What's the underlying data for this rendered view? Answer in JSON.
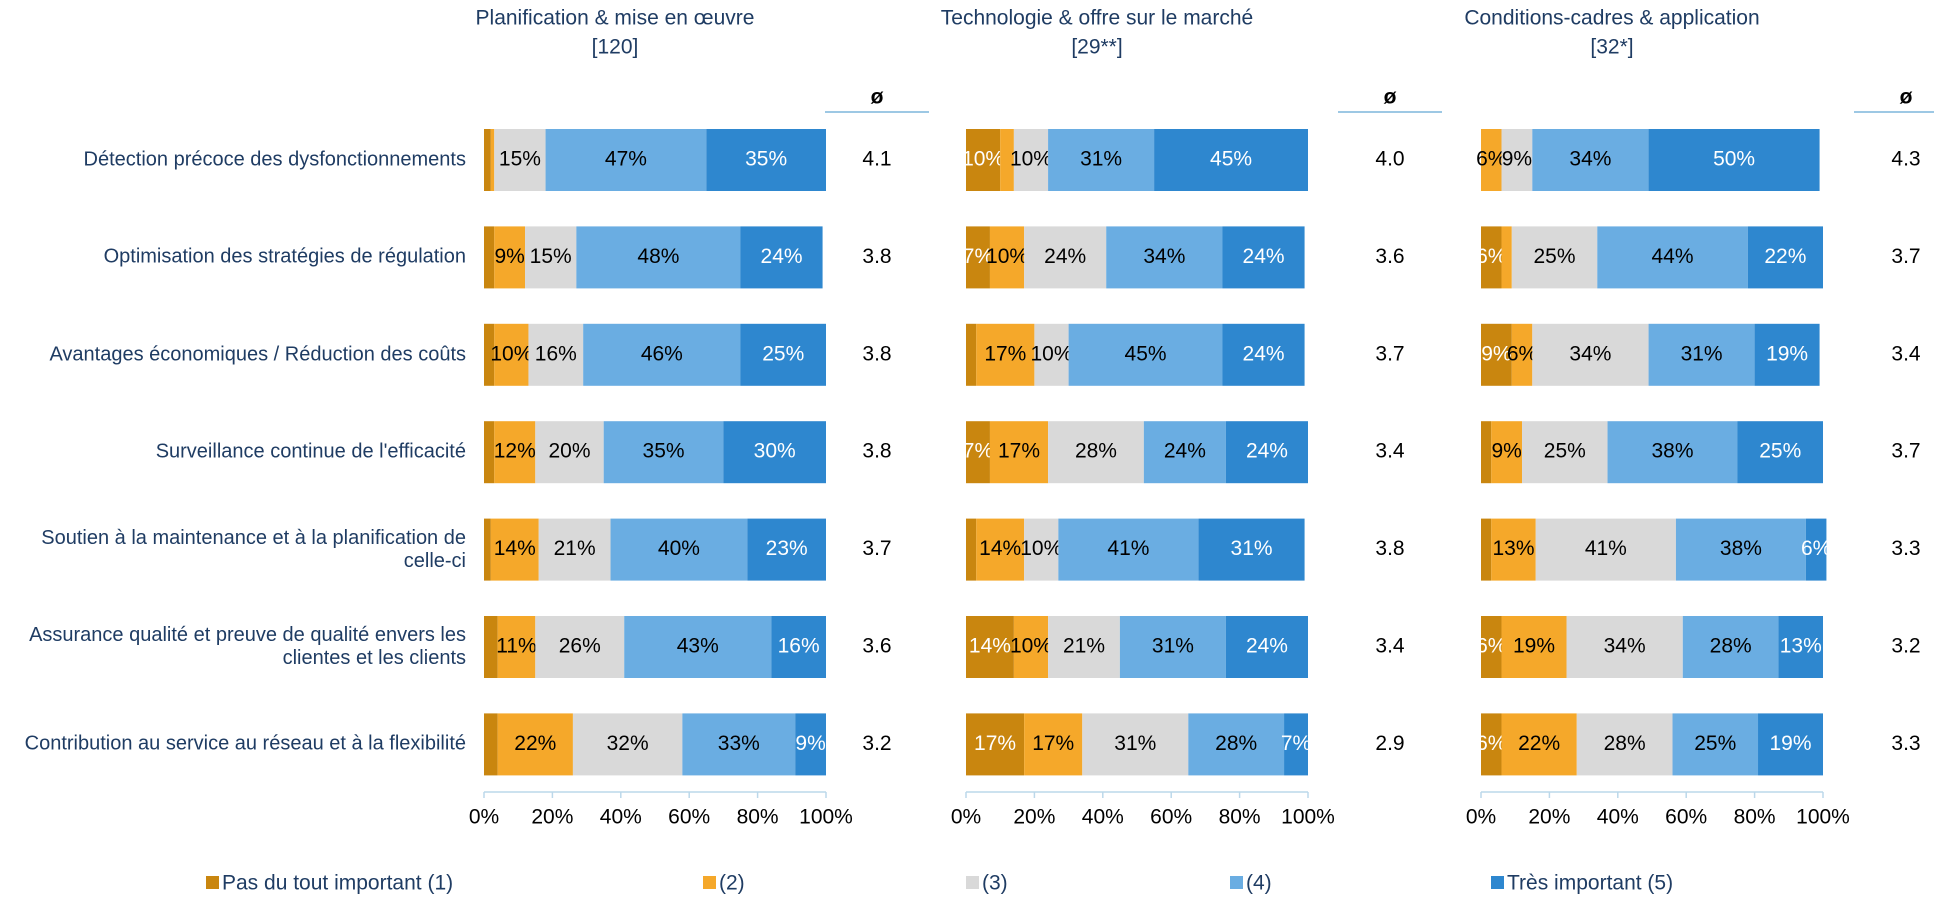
{
  "chart_data": [
    {
      "type": "stacked-bar-horizontal",
      "title": "Planification & mise en œuvre",
      "subtitle": "[120]",
      "categories": [
        "Détection précoce des dysfonctionnements",
        "Optimisation des stratégies de régulation",
        "Avantages économiques / Réduction des coûts",
        "Surveillance continue de l'efficacité",
        "Soutien à la maintenance et à la planification de celle-ci",
        "Assurance qualité et preuve de qualité envers les clientes et les clients",
        "Contribution au service au réseau et à la flexibilité"
      ],
      "xlim": [
        0,
        100
      ],
      "xticks": [
        {
          "value": 0,
          "label": "0%"
        },
        {
          "value": 20,
          "label": "20%"
        },
        {
          "value": 40,
          "label": "40%"
        },
        {
          "value": 60,
          "label": "60%"
        },
        {
          "value": 80,
          "label": "80%"
        },
        {
          "value": 100,
          "label": "100%"
        }
      ],
      "average_title": "ø",
      "averages": [
        "4.1",
        "3.8",
        "3.8",
        "3.8",
        "3.7",
        "3.6",
        "3.2"
      ],
      "series": [
        {
          "name": "Pas du tout important (1)",
          "color": "#c9860f",
          "values": [
            2,
            3,
            3,
            3,
            2,
            4,
            4
          ],
          "value_labels": [
            null,
            null,
            null,
            null,
            null,
            null,
            null
          ]
        },
        {
          "name": "(2)",
          "color": "#f5a82a",
          "values": [
            1,
            9,
            10,
            12,
            14,
            11,
            22
          ],
          "value_labels": [
            null,
            "9%",
            "10%",
            "12%",
            "14%",
            "11%",
            "22%"
          ]
        },
        {
          "name": "(3)",
          "color": "#d9d9d9",
          "values": [
            15,
            15,
            16,
            20,
            21,
            26,
            32
          ],
          "value_labels": [
            "15%",
            "15%",
            "16%",
            "20%",
            "21%",
            "26%",
            "32%"
          ]
        },
        {
          "name": "(4)",
          "color": "#6aade2",
          "values": [
            47,
            48,
            46,
            35,
            40,
            43,
            33
          ],
          "value_labels": [
            "47%",
            "48%",
            "46%",
            "35%",
            "40%",
            "43%",
            "33%"
          ]
        },
        {
          "name": "Très important (5)",
          "color": "#2e87cf",
          "values": [
            35,
            24,
            25,
            30,
            23,
            16,
            9
          ],
          "value_labels": [
            "35%",
            "24%",
            "25%",
            "30%",
            "23%",
            "16%",
            "9%"
          ]
        }
      ]
    },
    {
      "type": "stacked-bar-horizontal",
      "title": "Technologie & offre sur le marché",
      "subtitle": "[29**]",
      "xlim": [
        0,
        100
      ],
      "xticks": [
        {
          "value": 0,
          "label": "0%"
        },
        {
          "value": 20,
          "label": "20%"
        },
        {
          "value": 40,
          "label": "40%"
        },
        {
          "value": 60,
          "label": "60%"
        },
        {
          "value": 80,
          "label": "80%"
        },
        {
          "value": 100,
          "label": "100%"
        }
      ],
      "average_title": "ø",
      "averages": [
        "4.0",
        "3.6",
        "3.7",
        "3.4",
        "3.8",
        "3.4",
        "2.9"
      ],
      "series": [
        {
          "color": "#c9860f",
          "values": [
            10,
            7,
            3,
            7,
            3,
            14,
            17
          ],
          "value_labels": [
            "10%",
            "7%",
            null,
            "7%",
            null,
            "14%",
            "17%"
          ]
        },
        {
          "color": "#f5a82a",
          "values": [
            4,
            10,
            17,
            17,
            14,
            10,
            17
          ],
          "value_labels": [
            null,
            "10%",
            "17%",
            "17%",
            "14%",
            "10%",
            "17%"
          ]
        },
        {
          "color": "#d9d9d9",
          "values": [
            10,
            24,
            10,
            28,
            10,
            21,
            31
          ],
          "value_labels": [
            "10%",
            "24%",
            "10%",
            "28%",
            "10%",
            "21%",
            "31%"
          ]
        },
        {
          "color": "#6aade2",
          "values": [
            31,
            34,
            45,
            24,
            41,
            31,
            28
          ],
          "value_labels": [
            "31%",
            "34%",
            "45%",
            "24%",
            "41%",
            "31%",
            "28%"
          ]
        },
        {
          "color": "#2e87cf",
          "values": [
            45,
            24,
            24,
            24,
            31,
            24,
            7
          ],
          "value_labels": [
            "45%",
            "24%",
            "24%",
            "24%",
            "31%",
            "24%",
            "7%"
          ]
        }
      ]
    },
    {
      "type": "stacked-bar-horizontal",
      "title": "Conditions-cadres & application",
      "subtitle": "[32*]",
      "xlim": [
        0,
        100
      ],
      "xticks": [
        {
          "value": 0,
          "label": "0%"
        },
        {
          "value": 20,
          "label": "20%"
        },
        {
          "value": 40,
          "label": "40%"
        },
        {
          "value": 60,
          "label": "60%"
        },
        {
          "value": 80,
          "label": "80%"
        },
        {
          "value": 100,
          "label": "100%"
        }
      ],
      "average_title": "ø",
      "averages": [
        "4.3",
        "3.7",
        "3.4",
        "3.7",
        "3.3",
        "3.2",
        "3.3"
      ],
      "series": [
        {
          "color": "#c9860f",
          "values": [
            0,
            6,
            9,
            3,
            3,
            6,
            6
          ],
          "value_labels": [
            null,
            "6%",
            "9%",
            null,
            null,
            "6%",
            "6%"
          ]
        },
        {
          "color": "#f5a82a",
          "values": [
            6,
            3,
            6,
            9,
            13,
            19,
            22
          ],
          "value_labels": [
            "6%",
            null,
            "6%",
            "9%",
            "13%",
            "19%",
            "22%"
          ]
        },
        {
          "color": "#d9d9d9",
          "values": [
            9,
            25,
            34,
            25,
            41,
            34,
            28
          ],
          "value_labels": [
            "9%",
            "25%",
            "34%",
            "25%",
            "41%",
            "34%",
            "28%"
          ]
        },
        {
          "color": "#6aade2",
          "values": [
            34,
            44,
            31,
            38,
            38,
            28,
            25
          ],
          "value_labels": [
            "34%",
            "44%",
            "31%",
            "38%",
            "38%",
            "28%",
            "25%"
          ]
        },
        {
          "color": "#2e87cf",
          "values": [
            50,
            22,
            19,
            25,
            6,
            13,
            19
          ],
          "value_labels": [
            "50%",
            "22%",
            "19%",
            "25%",
            "6%",
            "13%",
            "19%"
          ]
        }
      ]
    }
  ]
}
